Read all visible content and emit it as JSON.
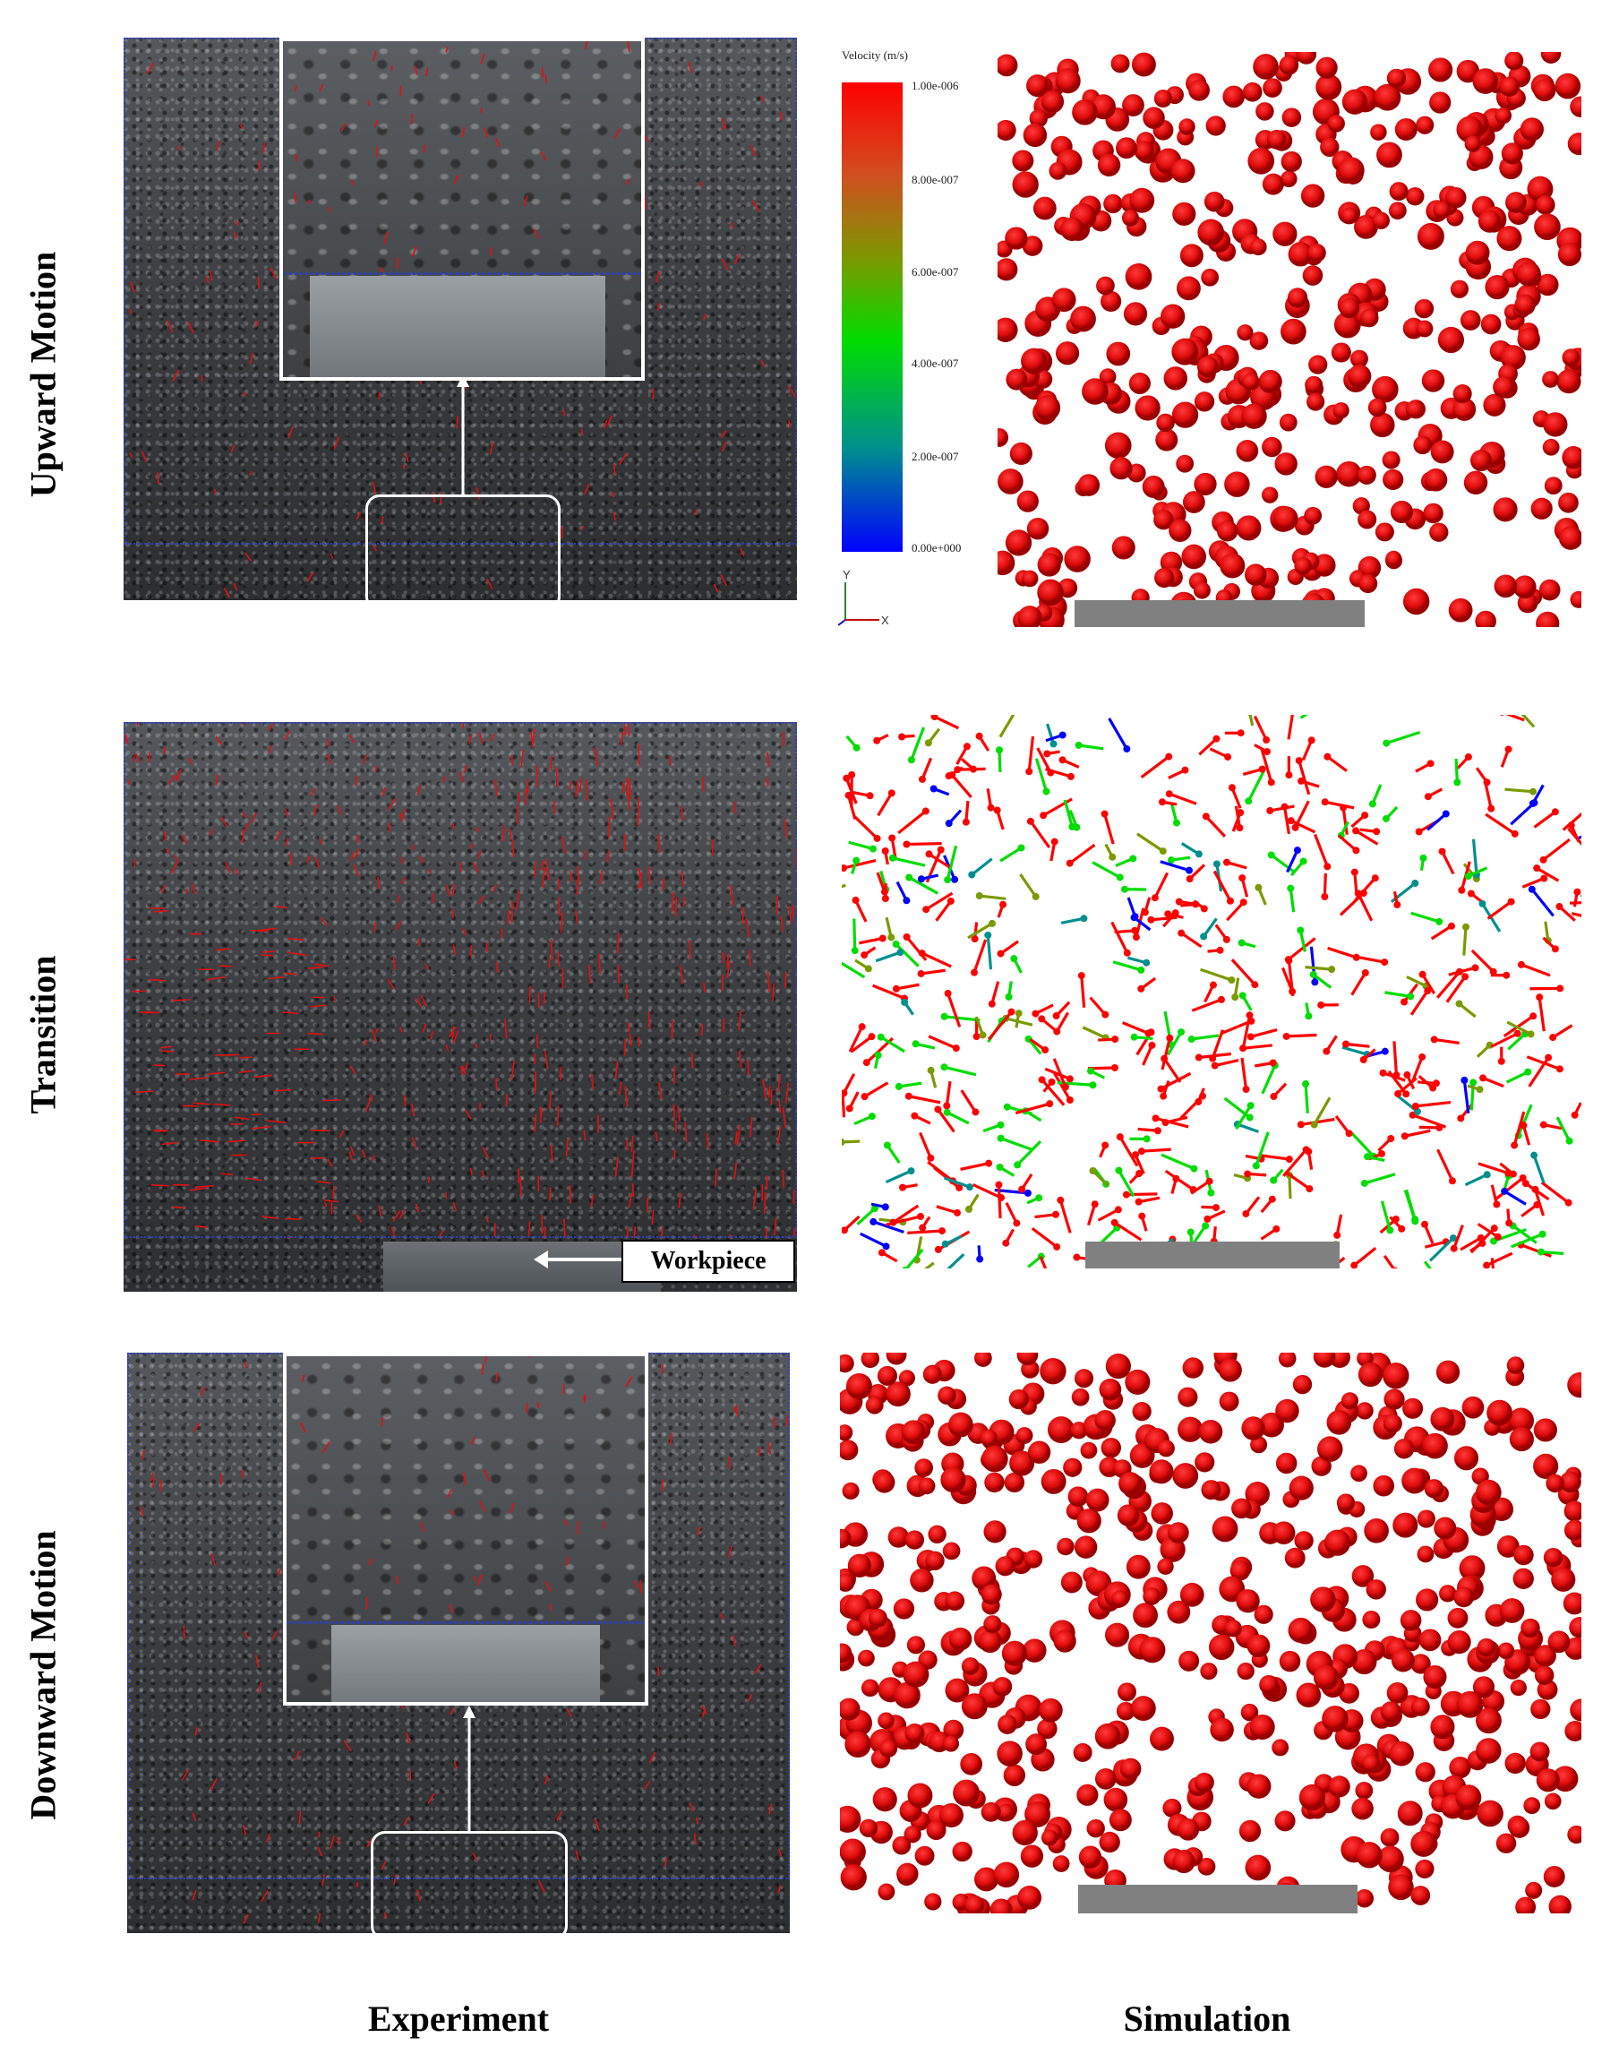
{
  "rows": [
    {
      "label": "Upward Motion"
    },
    {
      "label": "Transition"
    },
    {
      "label": "Downward Motion"
    }
  ],
  "columns": {
    "experiment": "Experiment",
    "simulation": "Simulation"
  },
  "legend": {
    "title": "Velocity (m/s)",
    "ticks": [
      "1.00e-006",
      "8.00e-007",
      "6.00e-007",
      "4.00e-007",
      "2.00e-007",
      "0.00e+000"
    ],
    "axis_y": "Y",
    "axis_x": "X",
    "scale_colors": [
      "#0000ff",
      "#008f8f",
      "#00dd00",
      "#7a9a00",
      "#d05020",
      "#ff0000"
    ]
  },
  "callout": {
    "label": "Workpiece"
  },
  "colors": {
    "particle": "#e01010",
    "workpiece": "#808080",
    "frame_dots": "#2a3fbf"
  }
}
